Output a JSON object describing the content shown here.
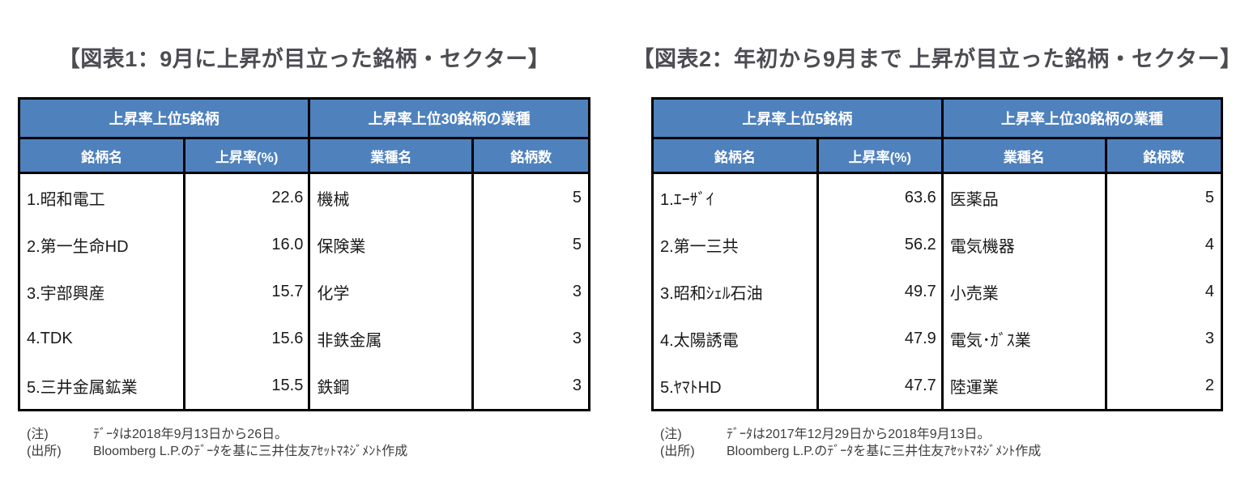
{
  "colors": {
    "header_bg": "#4F81BD",
    "header_text": "#FFFFFF",
    "table_border": "#000000",
    "title_text": "#4C4C52",
    "body_text": "#1A1A1A",
    "note_text": "#3D3D3D",
    "page_bg": "#FFFFFF"
  },
  "figures": [
    {
      "title": "【図表1：9月に上昇が目立った銘柄・セクター】",
      "group_headers": [
        "上昇率上位5銘柄",
        "上昇率上位30銘柄の業種"
      ],
      "column_headers": [
        "銘柄名",
        "上昇率(%)",
        "業種名",
        "銘柄数"
      ],
      "rows": [
        {
          "name": "1.昭和電工",
          "rate": "22.6",
          "sector": "機械",
          "count": "5"
        },
        {
          "name": "2.第一生命HD",
          "rate": "16.0",
          "sector": "保険業",
          "count": "5"
        },
        {
          "name": "3.宇部興産",
          "rate": "15.7",
          "sector": "化学",
          "count": "3"
        },
        {
          "name": "4.TDK",
          "rate": "15.6",
          "sector": "非鉄金属",
          "count": "3"
        },
        {
          "name": "5.三井金属鉱業",
          "rate": "15.5",
          "sector": "鉄鋼",
          "count": "3"
        }
      ],
      "note": {
        "label": "(注)",
        "text": "ﾃﾞｰﾀは2018年9月13日から26日。"
      },
      "source": {
        "label": "(出所)",
        "text": "Bloomberg L.P.のﾃﾞｰﾀを基に三井住友ｱｾｯﾄﾏﾈｼﾞﾒﾝﾄ作成"
      }
    },
    {
      "title": "【図表2：年初から9月まで 上昇が目立った銘柄・セクター】",
      "group_headers": [
        "上昇率上位5銘柄",
        "上昇率上位30銘柄の業種"
      ],
      "column_headers": [
        "銘柄名",
        "上昇率(%)",
        "業種名",
        "銘柄数"
      ],
      "rows": [
        {
          "name": "1.ｴｰｻﾞｲ",
          "rate": "63.6",
          "sector": "医薬品",
          "count": "5"
        },
        {
          "name": "2.第一三共",
          "rate": "56.2",
          "sector": "電気機器",
          "count": "4"
        },
        {
          "name": "3.昭和ｼｪﾙ石油",
          "rate": "49.7",
          "sector": "小売業",
          "count": "4"
        },
        {
          "name": "4.太陽誘電",
          "rate": "47.9",
          "sector": "電気･ｶﾞｽ業",
          "count": "3"
        },
        {
          "name": "5.ﾔﾏﾄHD",
          "rate": "47.7",
          "sector": "陸運業",
          "count": "2"
        }
      ],
      "note": {
        "label": "(注)",
        "text": "ﾃﾞｰﾀは2017年12月29日から2018年9月13日。"
      },
      "source": {
        "label": "(出所)",
        "text": "Bloomberg L.P.のﾃﾞｰﾀを基に三井住友ｱｾｯﾄﾏﾈｼﾞﾒﾝﾄ作成"
      }
    }
  ]
}
